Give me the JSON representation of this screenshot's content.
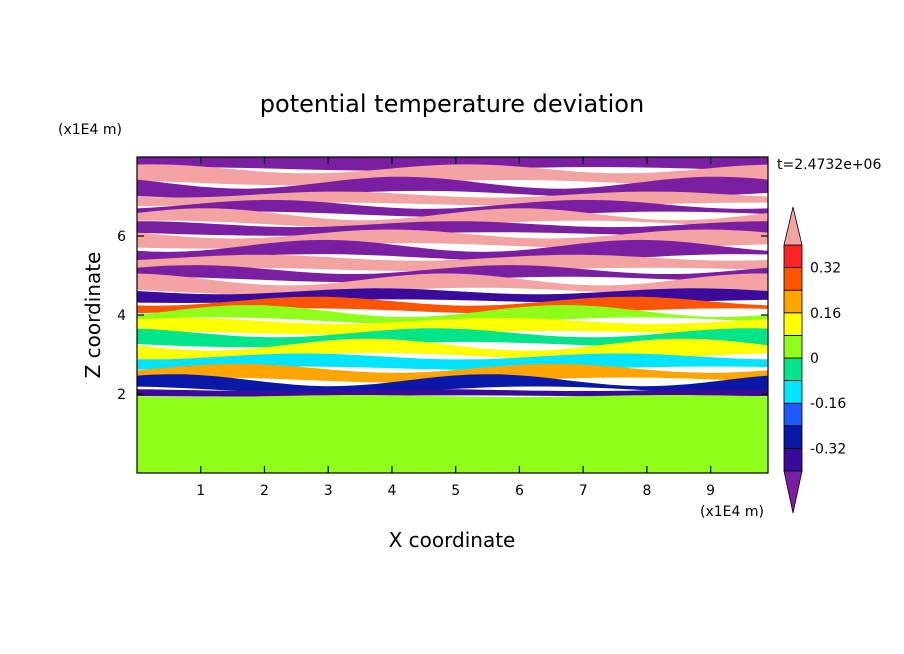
{
  "chart_data": {
    "type": "heatmap",
    "title": "potential temperature deviation",
    "xlabel": "X coordinate",
    "ylabel": "Z coordinate",
    "x_unit": "(x1E4 m)",
    "y_unit": "(x1E4 m)",
    "time_label": "t=2.4732e+06",
    "xlim": [
      0,
      9.9
    ],
    "ylim": [
      0,
      8
    ],
    "x_ticks": [
      1,
      2,
      3,
      4,
      5,
      6,
      7,
      8,
      9
    ],
    "y_ticks": [
      2,
      4,
      6
    ],
    "colorbar": {
      "levels": [
        -0.4,
        -0.32,
        -0.24,
        -0.16,
        -0.08,
        0,
        0.08,
        0.16,
        0.24,
        0.32,
        0.4
      ],
      "tick_labels": [
        "-0.32",
        "-0.16",
        "0",
        "0.16",
        "0.32"
      ],
      "tick_values": [
        -0.32,
        -0.16,
        0,
        0.16,
        0.32
      ],
      "under_color": "#7a1fa2",
      "over_color": "#f4a3a3",
      "colors": [
        "#3a0a9a",
        "#0a18a8",
        "#1a5aff",
        "#00e5ff",
        "#00e58a",
        "#8fff1a",
        "#ffff00",
        "#ffa500",
        "#ff5500",
        "#ff2222"
      ],
      "extend": "both"
    },
    "bands": [
      {
        "z": [
          7.7,
          8.0
        ],
        "value": -0.45
      },
      {
        "z": [
          7.35,
          7.7
        ],
        "value": 0.45
      },
      {
        "z": [
          7.05,
          7.35
        ],
        "value": -0.45
      },
      {
        "z": [
          6.8,
          7.05
        ],
        "value": 0.45
      },
      {
        "z": [
          6.55,
          6.8
        ],
        "value": -0.45
      },
      {
        "z": [
          6.3,
          6.55
        ],
        "value": 0.45
      },
      {
        "z": [
          6.05,
          6.3
        ],
        "value": -0.45
      },
      {
        "z": [
          5.75,
          6.05
        ],
        "value": 0.45
      },
      {
        "z": [
          5.45,
          5.75
        ],
        "value": -0.45
      },
      {
        "z": [
          5.15,
          5.45
        ],
        "value": 0.45
      },
      {
        "z": [
          4.9,
          5.15
        ],
        "value": -0.45
      },
      {
        "z": [
          4.6,
          4.9
        ],
        "value": 0.45
      },
      {
        "z": [
          4.35,
          4.6
        ],
        "value": -0.4
      },
      {
        "z": [
          4.1,
          4.35
        ],
        "value": 0.3
      },
      {
        "z": [
          3.85,
          4.1
        ],
        "value": 0.05
      },
      {
        "z": [
          3.55,
          3.85
        ],
        "value": 0.12
      },
      {
        "z": [
          3.25,
          3.55
        ],
        "value": -0.05
      },
      {
        "z": [
          2.95,
          3.25
        ],
        "value": 0.1
      },
      {
        "z": [
          2.65,
          2.95
        ],
        "value": -0.1
      },
      {
        "z": [
          2.35,
          2.65
        ],
        "value": 0.2
      },
      {
        "z": [
          2.1,
          2.35
        ],
        "value": -0.25
      },
      {
        "z": [
          1.95,
          2.1
        ],
        "value": -0.35
      },
      {
        "z": [
          0,
          1.95
        ],
        "value": 0.02
      }
    ]
  }
}
